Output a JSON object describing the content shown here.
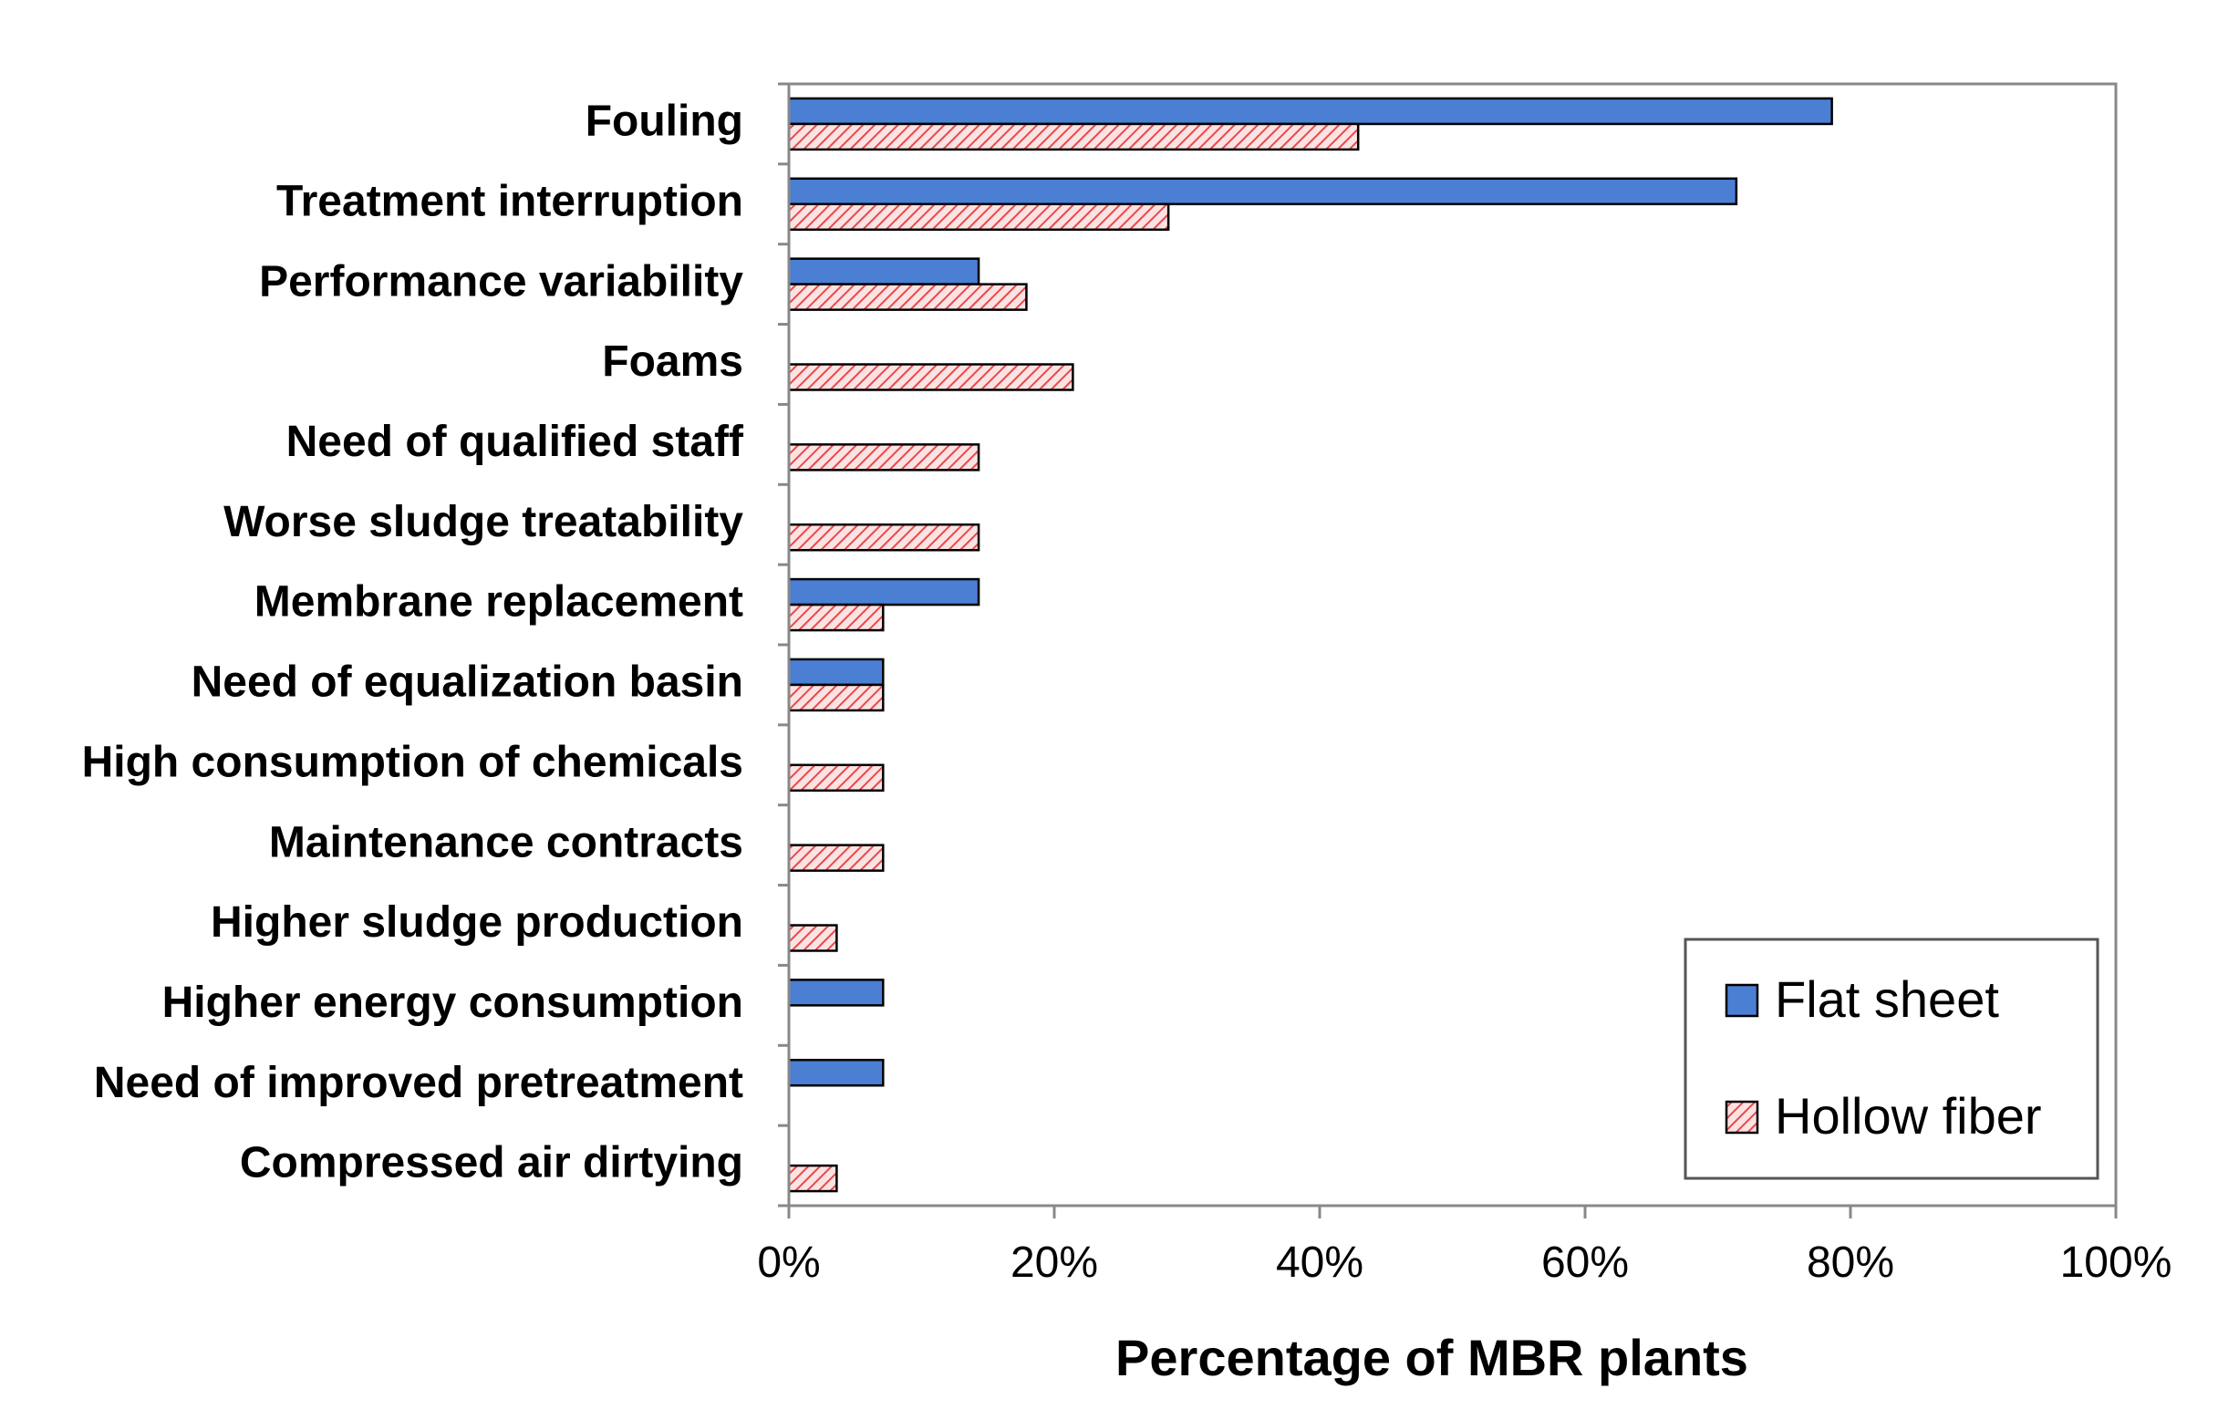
{
  "chart_data": {
    "type": "bar",
    "orientation": "horizontal",
    "title": "",
    "xlabel": "Percentage of MBR plants",
    "ylabel": "",
    "xlim": [
      0,
      100
    ],
    "x_ticks": [
      0,
      20,
      40,
      60,
      80,
      100
    ],
    "x_tick_labels": [
      "0%",
      "20%",
      "40%",
      "60%",
      "80%",
      "100%"
    ],
    "grid": false,
    "legend_position": "bottom-right",
    "categories": [
      "Fouling",
      "Treatment interruption",
      "Performance variability",
      "Foams",
      "Need of qualified staff",
      "Worse sludge treatability",
      "Membrane replacement",
      "Need of equalization basin",
      "High consumption of chemicals",
      "Maintenance contracts",
      "Higher sludge production",
      "Higher energy consumption",
      "Need of improved pretreatment",
      "Compressed air dirtying"
    ],
    "series": [
      {
        "name": "Flat sheet",
        "color": "#4a7fd4",
        "pattern": "solid",
        "values": [
          78.6,
          71.4,
          14.3,
          0,
          0,
          0,
          14.3,
          7.1,
          0,
          0,
          0,
          7.1,
          7.1,
          0
        ]
      },
      {
        "name": "Hollow fiber",
        "color": "#e8494c",
        "pattern": "hatched",
        "values": [
          42.9,
          28.6,
          17.9,
          21.4,
          14.3,
          14.3,
          7.1,
          7.1,
          7.1,
          7.1,
          3.6,
          0,
          0,
          3.6
        ]
      }
    ]
  }
}
